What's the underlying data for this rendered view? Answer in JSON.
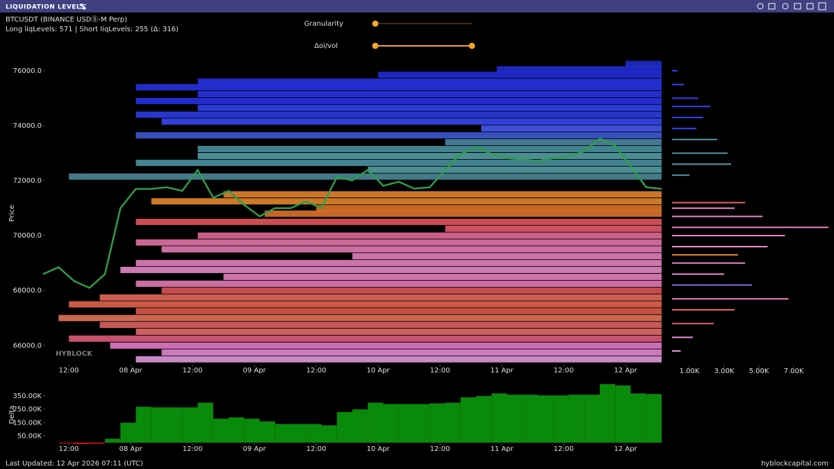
{
  "header": {
    "title": "LIQUIDATION LEVELS",
    "symbol": "BTCUSDT (BINANCE USDⓈ-M Perp)",
    "counts": "Long liqLevels: 571 | Short liqLevels: 255 (Δ: 316)"
  },
  "controls": [
    {
      "label": "Granularity"
    },
    {
      "label": "Δoi/vol"
    }
  ],
  "footer": {
    "updated": "Last Updated: 12 Apr 2026 07:11 (UTC)",
    "site": "hyblockcapital.com"
  },
  "chart_data": [
    {
      "type": "line",
      "y_label": "Price",
      "watermark": "HYBLOCK",
      "color": "#2e9e4a",
      "x": [
        7,
        10,
        13,
        16,
        19,
        22,
        25,
        28,
        31,
        34,
        37,
        40,
        43,
        46,
        49,
        52,
        55,
        58,
        61,
        64,
        67,
        70,
        73,
        76,
        79,
        82,
        85,
        88,
        91,
        94,
        97,
        100,
        103,
        106,
        109,
        112,
        115,
        118,
        121,
        124,
        127
      ],
      "values": [
        68600,
        68850,
        68350,
        68100,
        68600,
        71000,
        71700,
        71700,
        71760,
        71630,
        72390,
        71380,
        71630,
        71120,
        70700,
        71000,
        71000,
        71250,
        71000,
        72140,
        72010,
        72390,
        71810,
        71960,
        71710,
        71760,
        72390,
        72970,
        73220,
        72970,
        72820,
        72770,
        72720,
        72820,
        72890,
        73070,
        73530,
        73270,
        72520,
        71760,
        71700
      ],
      "xlim": [
        7,
        127
      ],
      "ylim": [
        65300,
        76350
      ],
      "xticks": [
        {
          "value": 12,
          "label": "12:00"
        },
        {
          "value": 24,
          "label": "08 Apr"
        },
        {
          "value": 36,
          "label": "12:00"
        },
        {
          "value": 48,
          "label": "09 Apr"
        },
        {
          "value": 60,
          "label": "12:00"
        },
        {
          "value": 72,
          "label": "10 Apr"
        },
        {
          "value": 84,
          "label": "12:00"
        },
        {
          "value": 96,
          "label": "11 Apr"
        },
        {
          "value": 108,
          "label": "12:00"
        },
        {
          "value": 120,
          "label": "12 Apr"
        }
      ],
      "yticks": [
        {
          "value": 66000,
          "label": "66000.0"
        },
        {
          "value": 68000,
          "label": "68000.0"
        },
        {
          "value": 70000,
          "label": "70000.0"
        },
        {
          "value": 72000,
          "label": "72000.0"
        },
        {
          "value": 74000,
          "label": "74000.0"
        },
        {
          "value": 76000,
          "label": "76000.0"
        }
      ],
      "liq_levels": {
        "price": [
          76250,
          76050,
          75850,
          75600,
          75400,
          75150,
          74900,
          74650,
          74400,
          74150,
          73900,
          73650,
          73400,
          73150,
          72900,
          72650,
          72400,
          72150,
          71500,
          71250,
          71000,
          70800,
          70500,
          70250,
          70000,
          69750,
          69500,
          69250,
          69000,
          68750,
          68500,
          68250,
          68000,
          67750,
          67500,
          67250,
          67000,
          66750,
          66500,
          66250,
          66000,
          65750,
          65500
        ],
        "start": [
          120,
          95,
          72,
          37,
          25,
          37,
          25,
          37,
          25,
          30,
          92,
          25,
          85,
          37,
          37,
          25,
          70,
          12,
          42,
          28,
          60,
          50,
          25,
          85,
          37,
          25,
          30,
          67,
          25,
          22,
          42,
          25,
          30,
          18,
          12,
          25,
          10,
          18,
          25,
          12,
          20,
          30,
          25
        ],
        "color": [
          "#1f2fd0",
          "#2430e0",
          "#2430e0",
          "#2a36f0",
          "#2a36f0",
          "#2a36f0",
          "#2a36f0",
          "#3344ff",
          "#3040f0",
          "#3b4cff",
          "#4a5cff",
          "#4060e0",
          "#4f8fb0",
          "#4f9aa8",
          "#5aa6b0",
          "#4f9aa8",
          "#5aa6b0",
          "#4f8fa0",
          "#f08a30",
          "#f09030",
          "#e87a28",
          "#e87830",
          "#f05a60",
          "#f06070",
          "#f070a0",
          "#f07ab0",
          "#f080c0",
          "#f088c8",
          "#f08ac8",
          "#f090d0",
          "#f088c8",
          "#f080c0",
          "#e85a5a",
          "#f07060",
          "#f06a50",
          "#e86050",
          "#f07a60",
          "#e86868",
          "#f07070",
          "#e86080",
          "#f080d0",
          "#f090e0",
          "#f0a0e8"
        ]
      }
    },
    {
      "type": "area",
      "y_label": "Delta",
      "color": "#0a8a0a",
      "neg_color": "#e01010",
      "x": [
        7,
        10,
        13,
        16,
        19,
        22,
        25,
        28,
        31,
        34,
        37,
        40,
        43,
        46,
        49,
        52,
        55,
        58,
        61,
        64,
        67,
        70,
        73,
        76,
        79,
        82,
        85,
        88,
        91,
        94,
        97,
        100,
        103,
        106,
        109,
        112,
        115,
        118,
        121,
        124,
        127
      ],
      "values": [
        0,
        -5000,
        -10000,
        -8000,
        30000,
        150000,
        270000,
        265000,
        265000,
        265000,
        300000,
        180000,
        190000,
        180000,
        160000,
        140000,
        140000,
        140000,
        130000,
        230000,
        250000,
        300000,
        290000,
        290000,
        290000,
        295000,
        300000,
        340000,
        350000,
        370000,
        360000,
        360000,
        355000,
        355000,
        360000,
        360000,
        440000,
        430000,
        370000,
        365000,
        365000
      ],
      "xlim": [
        7,
        127
      ],
      "ylim": [
        -15000,
        465000
      ],
      "xticks": [
        {
          "value": 12,
          "label": "12:00"
        },
        {
          "value": 24,
          "label": "08 Apr"
        },
        {
          "value": 36,
          "label": "12:00"
        },
        {
          "value": 48,
          "label": "09 Apr"
        },
        {
          "value": 60,
          "label": "12:00"
        },
        {
          "value": 72,
          "label": "10 Apr"
        },
        {
          "value": 84,
          "label": "12:00"
        },
        {
          "value": 96,
          "label": "11 Apr"
        },
        {
          "value": 108,
          "label": "12:00"
        },
        {
          "value": 120,
          "label": "12 Apr"
        }
      ],
      "yticks": [
        {
          "value": 50000,
          "label": "50.00K"
        },
        {
          "value": 150000,
          "label": "150.00K"
        },
        {
          "value": 250000,
          "label": "250.00K"
        },
        {
          "value": 350000,
          "label": "350.00K"
        }
      ]
    },
    {
      "type": "bar",
      "orientation": "horizontal",
      "prices": [
        76000,
        75500,
        75000,
        74700,
        74300,
        73900,
        73500,
        73000,
        72600,
        72200,
        71200,
        71000,
        70700,
        70300,
        70000,
        69600,
        69300,
        69000,
        68600,
        68200,
        67700,
        67300,
        66800,
        66300,
        65800
      ],
      "values": [
        300,
        700,
        1500,
        2200,
        1800,
        1400,
        2600,
        3200,
        3400,
        1000,
        4200,
        3600,
        5200,
        9000,
        6500,
        5500,
        3800,
        4200,
        3000,
        4600,
        6700,
        3600,
        2400,
        1200,
        500
      ],
      "colors": [
        "#3344ff",
        "#3344ff",
        "#3344ff",
        "#3344ff",
        "#3344ff",
        "#3344ff",
        "#4f9aa8",
        "#4f9aa8",
        "#4f9aa8",
        "#4f9aa8",
        "#f06070",
        "#f08ac8",
        "#f08ac8",
        "#f080c0",
        "#f08ac8",
        "#f090d0",
        "#f08a30",
        "#f088c8",
        "#f090d0",
        "#8a6ad0",
        "#f080c0",
        "#f07060",
        "#e86080",
        "#f090e0",
        "#f0a0e8"
      ],
      "xlim": [
        0,
        9200
      ],
      "ylim": [
        65300,
        76350
      ],
      "xticks": [
        {
          "value": 1000,
          "label": "1.00K"
        },
        {
          "value": 3000,
          "label": "3.00K"
        },
        {
          "value": 5000,
          "label": "5.00K"
        },
        {
          "value": 7000,
          "label": "7.00K"
        }
      ]
    }
  ]
}
